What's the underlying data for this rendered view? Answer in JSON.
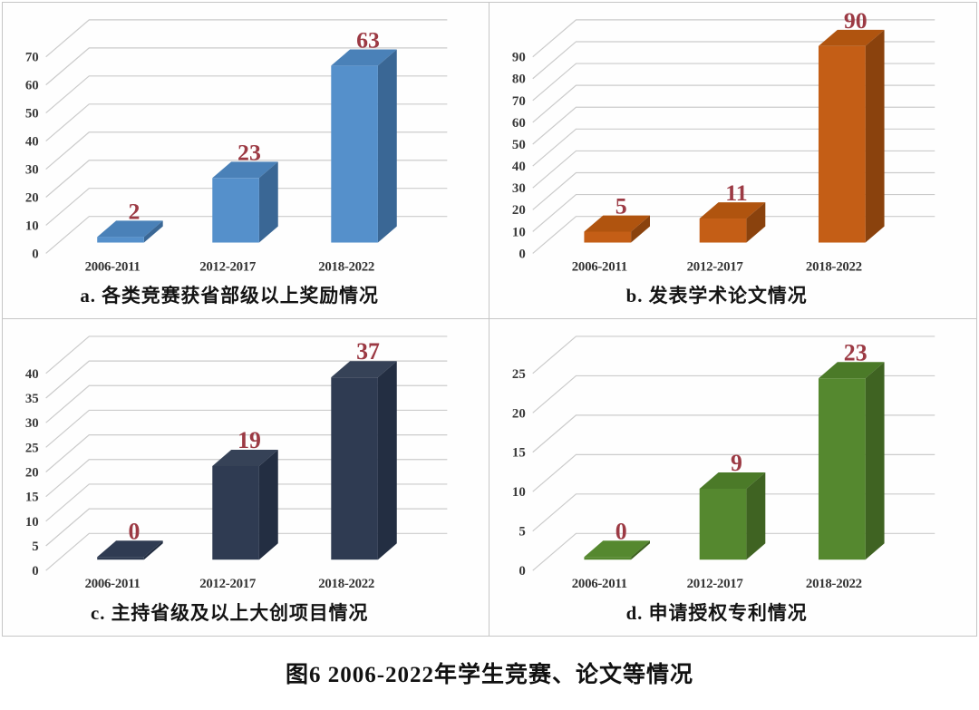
{
  "figure": {
    "caption": "图6 2006-2022年学生竞赛、论文等情况",
    "background": "#ffffff",
    "border_color": "#c6c6c6",
    "gridline_color": "#cbcbcb"
  },
  "chart_data": [
    {
      "id": "a",
      "type": "bar",
      "style": "3d",
      "title": "a. 各类竞赛获省部级以上奖励情况",
      "categories": [
        "2006-2011",
        "2012-2017",
        "2018-2022"
      ],
      "values": [
        2,
        23,
        63
      ],
      "ylim": [
        0,
        70
      ],
      "ytick_step": 10,
      "grid": true,
      "legend": "none",
      "colors": {
        "front": "#5590cb",
        "top": "#4a81b8",
        "side": "#3a6795"
      },
      "value_label_color": "#9c3a44"
    },
    {
      "id": "b",
      "type": "bar",
      "style": "3d",
      "title": "b.  发表学术论文情况",
      "categories": [
        "2006-2011",
        "2012-2017",
        "2018-2022"
      ],
      "values": [
        5,
        11,
        90
      ],
      "ylim": [
        0,
        90
      ],
      "ytick_step": 10,
      "grid": true,
      "legend": "none",
      "colors": {
        "front": "#c45e16",
        "top": "#b0540f",
        "side": "#8a420d"
      },
      "value_label_color": "#9c3a44"
    },
    {
      "id": "c",
      "type": "bar",
      "style": "3d",
      "title": "c. 主持省级及以上大创项目情况",
      "categories": [
        "2006-2011",
        "2012-2017",
        "2018-2022"
      ],
      "values": [
        0,
        19,
        37
      ],
      "ylim": [
        0,
        40
      ],
      "ytick_step": 5,
      "grid": true,
      "legend": "none",
      "colors": {
        "front": "#2f3b52",
        "top": "#364257",
        "side": "#232e42"
      },
      "value_label_color": "#9c3a44"
    },
    {
      "id": "d",
      "type": "bar",
      "style": "3d",
      "title": "d. 申请授权专利情况",
      "categories": [
        "2006-2011",
        "2012-2017",
        "2018-2022"
      ],
      "values": [
        0,
        9,
        23
      ],
      "ylim": [
        0,
        25
      ],
      "ytick_step": 5,
      "grid": true,
      "legend": "none",
      "colors": {
        "front": "#55882f",
        "top": "#4b7a28",
        "side": "#3f6322"
      },
      "value_label_color": "#9c3a44"
    }
  ]
}
